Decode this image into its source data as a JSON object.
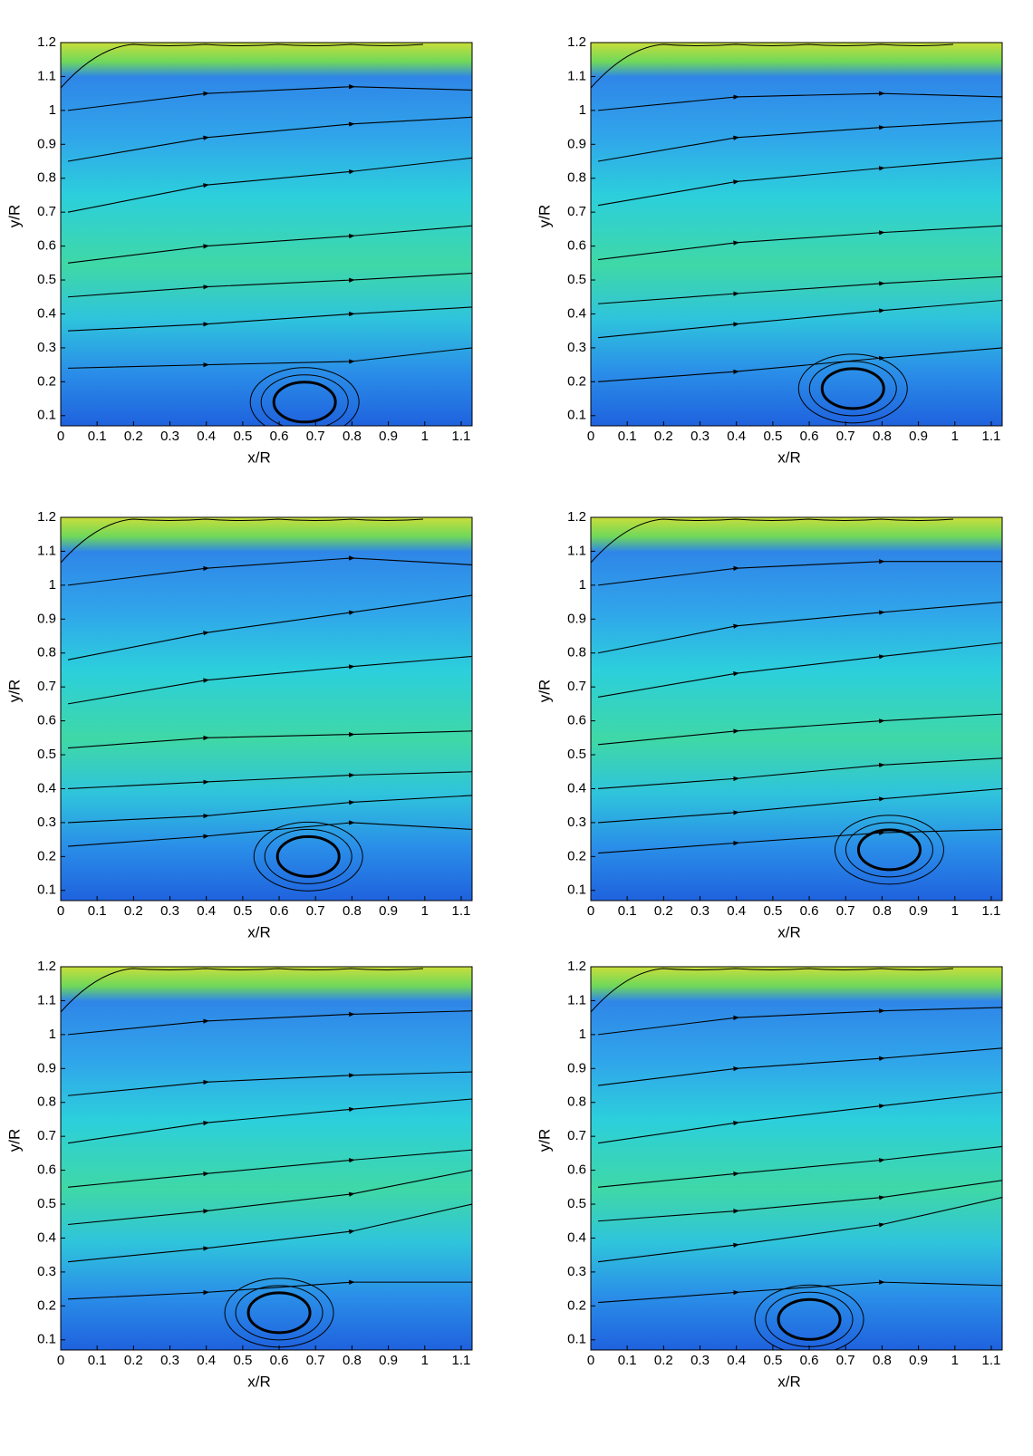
{
  "chart_data": [
    {
      "type": "contour",
      "xlabel": "x/R",
      "ylabel": "y/R",
      "xlim": [
        0,
        1.13
      ],
      "ylim": [
        0.07,
        1.2
      ],
      "xticks": [
        0,
        0.1,
        0.2,
        0.3,
        0.4,
        0.5,
        0.6,
        0.7,
        0.8,
        0.9,
        1,
        1.1
      ],
      "yticks": [
        0.1,
        0.2,
        0.3,
        0.4,
        0.5,
        0.6,
        0.7,
        0.8,
        0.9,
        1,
        1.1,
        1.2
      ],
      "streamlines": [
        {
          "x": [
            0.02,
            0.4,
            0.8,
            1.13
          ],
          "y": [
            1.0,
            1.05,
            1.07,
            1.06
          ]
        },
        {
          "x": [
            0.02,
            0.4,
            0.8,
            1.13
          ],
          "y": [
            0.85,
            0.92,
            0.96,
            0.98
          ]
        },
        {
          "x": [
            0.02,
            0.4,
            0.8,
            1.13
          ],
          "y": [
            0.7,
            0.78,
            0.82,
            0.86
          ]
        },
        {
          "x": [
            0.02,
            0.4,
            0.8,
            1.13
          ],
          "y": [
            0.55,
            0.6,
            0.63,
            0.66
          ]
        },
        {
          "x": [
            0.02,
            0.4,
            0.8,
            1.13
          ],
          "y": [
            0.45,
            0.48,
            0.5,
            0.52
          ]
        },
        {
          "x": [
            0.02,
            0.4,
            0.8,
            1.13
          ],
          "y": [
            0.35,
            0.37,
            0.4,
            0.42
          ]
        },
        {
          "x": [
            0.02,
            0.4,
            0.8,
            1.13
          ],
          "y": [
            0.24,
            0.25,
            0.26,
            0.3
          ]
        }
      ],
      "vortex": {
        "x": 0.67,
        "y": 0.14
      }
    },
    {
      "type": "contour",
      "xlabel": "x/R",
      "ylabel": "y/R",
      "xlim": [
        0,
        1.13
      ],
      "ylim": [
        0.07,
        1.2
      ],
      "xticks": [
        0,
        0.1,
        0.2,
        0.3,
        0.4,
        0.5,
        0.6,
        0.7,
        0.8,
        0.9,
        1,
        1.1
      ],
      "yticks": [
        0.1,
        0.2,
        0.3,
        0.4,
        0.5,
        0.6,
        0.7,
        0.8,
        0.9,
        1,
        1.1,
        1.2
      ],
      "streamlines": [
        {
          "x": [
            0.02,
            0.4,
            0.8,
            1.13
          ],
          "y": [
            1.0,
            1.04,
            1.05,
            1.04
          ]
        },
        {
          "x": [
            0.02,
            0.4,
            0.8,
            1.13
          ],
          "y": [
            0.85,
            0.92,
            0.95,
            0.97
          ]
        },
        {
          "x": [
            0.02,
            0.4,
            0.8,
            1.13
          ],
          "y": [
            0.72,
            0.79,
            0.83,
            0.86
          ]
        },
        {
          "x": [
            0.02,
            0.4,
            0.8,
            1.13
          ],
          "y": [
            0.56,
            0.61,
            0.64,
            0.66
          ]
        },
        {
          "x": [
            0.02,
            0.4,
            0.8,
            1.13
          ],
          "y": [
            0.43,
            0.46,
            0.49,
            0.51
          ]
        },
        {
          "x": [
            0.02,
            0.4,
            0.8,
            1.13
          ],
          "y": [
            0.33,
            0.37,
            0.41,
            0.44
          ]
        },
        {
          "x": [
            0.02,
            0.4,
            0.8,
            1.13
          ],
          "y": [
            0.2,
            0.23,
            0.27,
            0.3
          ]
        }
      ],
      "vortex": {
        "x": 0.72,
        "y": 0.18
      }
    },
    {
      "type": "contour",
      "xlabel": "x/R",
      "ylabel": "y/R",
      "xlim": [
        0,
        1.13
      ],
      "ylim": [
        0.07,
        1.2
      ],
      "xticks": [
        0,
        0.1,
        0.2,
        0.3,
        0.4,
        0.5,
        0.6,
        0.7,
        0.8,
        0.9,
        1,
        1.1
      ],
      "yticks": [
        0.1,
        0.2,
        0.3,
        0.4,
        0.5,
        0.6,
        0.7,
        0.8,
        0.9,
        1,
        1.1,
        1.2
      ],
      "streamlines": [
        {
          "x": [
            0.02,
            0.4,
            0.8,
            1.13
          ],
          "y": [
            1.0,
            1.05,
            1.08,
            1.06
          ]
        },
        {
          "x": [
            0.02,
            0.4,
            0.8,
            1.13
          ],
          "y": [
            0.78,
            0.86,
            0.92,
            0.97
          ]
        },
        {
          "x": [
            0.02,
            0.4,
            0.8,
            1.13
          ],
          "y": [
            0.65,
            0.72,
            0.76,
            0.79
          ]
        },
        {
          "x": [
            0.02,
            0.4,
            0.8,
            1.13
          ],
          "y": [
            0.52,
            0.55,
            0.56,
            0.57
          ]
        },
        {
          "x": [
            0.02,
            0.4,
            0.8,
            1.13
          ],
          "y": [
            0.4,
            0.42,
            0.44,
            0.45
          ]
        },
        {
          "x": [
            0.02,
            0.4,
            0.8,
            1.13
          ],
          "y": [
            0.3,
            0.32,
            0.36,
            0.38
          ]
        },
        {
          "x": [
            0.02,
            0.4,
            0.8,
            1.13
          ],
          "y": [
            0.23,
            0.26,
            0.3,
            0.28
          ]
        }
      ],
      "vortex": {
        "x": 0.68,
        "y": 0.2
      }
    },
    {
      "type": "contour",
      "xlabel": "x/R",
      "ylabel": "y/R",
      "xlim": [
        0,
        1.13
      ],
      "ylim": [
        0.07,
        1.2
      ],
      "xticks": [
        0,
        0.1,
        0.2,
        0.3,
        0.4,
        0.5,
        0.6,
        0.7,
        0.8,
        0.9,
        1,
        1.1
      ],
      "yticks": [
        0.1,
        0.2,
        0.3,
        0.4,
        0.5,
        0.6,
        0.7,
        0.8,
        0.9,
        1,
        1.1,
        1.2
      ],
      "streamlines": [
        {
          "x": [
            0.02,
            0.4,
            0.8,
            1.13
          ],
          "y": [
            1.0,
            1.05,
            1.07,
            1.07
          ]
        },
        {
          "x": [
            0.02,
            0.4,
            0.8,
            1.13
          ],
          "y": [
            0.8,
            0.88,
            0.92,
            0.95
          ]
        },
        {
          "x": [
            0.02,
            0.4,
            0.8,
            1.13
          ],
          "y": [
            0.67,
            0.74,
            0.79,
            0.83
          ]
        },
        {
          "x": [
            0.02,
            0.4,
            0.8,
            1.13
          ],
          "y": [
            0.53,
            0.57,
            0.6,
            0.62
          ]
        },
        {
          "x": [
            0.02,
            0.4,
            0.8,
            1.13
          ],
          "y": [
            0.4,
            0.43,
            0.47,
            0.49
          ]
        },
        {
          "x": [
            0.02,
            0.4,
            0.8,
            1.13
          ],
          "y": [
            0.3,
            0.33,
            0.37,
            0.4
          ]
        },
        {
          "x": [
            0.02,
            0.4,
            0.8,
            1.13
          ],
          "y": [
            0.21,
            0.24,
            0.27,
            0.28
          ]
        }
      ],
      "vortex": {
        "x": 0.82,
        "y": 0.22
      }
    },
    {
      "type": "contour",
      "xlabel": "x/R",
      "ylabel": "y/R",
      "xlim": [
        0,
        1.13
      ],
      "ylim": [
        0.07,
        1.2
      ],
      "xticks": [
        0,
        0.1,
        0.2,
        0.3,
        0.4,
        0.5,
        0.6,
        0.7,
        0.8,
        0.9,
        1,
        1.1
      ],
      "yticks": [
        0.1,
        0.2,
        0.3,
        0.4,
        0.5,
        0.6,
        0.7,
        0.8,
        0.9,
        1,
        1.1,
        1.2
      ],
      "streamlines": [
        {
          "x": [
            0.02,
            0.4,
            0.8,
            1.13
          ],
          "y": [
            1.0,
            1.04,
            1.06,
            1.07
          ]
        },
        {
          "x": [
            0.02,
            0.4,
            0.8,
            1.13
          ],
          "y": [
            0.82,
            0.86,
            0.88,
            0.89
          ]
        },
        {
          "x": [
            0.02,
            0.4,
            0.8,
            1.13
          ],
          "y": [
            0.68,
            0.74,
            0.78,
            0.81
          ]
        },
        {
          "x": [
            0.02,
            0.4,
            0.8,
            1.13
          ],
          "y": [
            0.55,
            0.59,
            0.63,
            0.66
          ]
        },
        {
          "x": [
            0.02,
            0.4,
            0.8,
            1.13
          ],
          "y": [
            0.44,
            0.48,
            0.53,
            0.6
          ]
        },
        {
          "x": [
            0.02,
            0.4,
            0.8,
            1.13
          ],
          "y": [
            0.33,
            0.37,
            0.42,
            0.5
          ]
        },
        {
          "x": [
            0.02,
            0.4,
            0.8,
            1.13
          ],
          "y": [
            0.22,
            0.24,
            0.27,
            0.27
          ]
        }
      ],
      "vortex": {
        "x": 0.6,
        "y": 0.18
      }
    },
    {
      "type": "contour",
      "xlabel": "x/R",
      "ylabel": "y/R",
      "xlim": [
        0,
        1.13
      ],
      "ylim": [
        0.07,
        1.2
      ],
      "xticks": [
        0,
        0.1,
        0.2,
        0.3,
        0.4,
        0.5,
        0.6,
        0.7,
        0.8,
        0.9,
        1,
        1.1
      ],
      "yticks": [
        0.1,
        0.2,
        0.3,
        0.4,
        0.5,
        0.6,
        0.7,
        0.8,
        0.9,
        1,
        1.1,
        1.2
      ],
      "streamlines": [
        {
          "x": [
            0.02,
            0.4,
            0.8,
            1.13
          ],
          "y": [
            1.0,
            1.05,
            1.07,
            1.08
          ]
        },
        {
          "x": [
            0.02,
            0.4,
            0.8,
            1.13
          ],
          "y": [
            0.85,
            0.9,
            0.93,
            0.96
          ]
        },
        {
          "x": [
            0.02,
            0.4,
            0.8,
            1.13
          ],
          "y": [
            0.68,
            0.74,
            0.79,
            0.83
          ]
        },
        {
          "x": [
            0.02,
            0.4,
            0.8,
            1.13
          ],
          "y": [
            0.55,
            0.59,
            0.63,
            0.67
          ]
        },
        {
          "x": [
            0.02,
            0.4,
            0.8,
            1.13
          ],
          "y": [
            0.45,
            0.48,
            0.52,
            0.57
          ]
        },
        {
          "x": [
            0.02,
            0.4,
            0.8,
            1.13
          ],
          "y": [
            0.33,
            0.38,
            0.44,
            0.52
          ]
        },
        {
          "x": [
            0.02,
            0.4,
            0.8,
            1.13
          ],
          "y": [
            0.21,
            0.24,
            0.27,
            0.26
          ]
        }
      ],
      "vortex": {
        "x": 0.6,
        "y": 0.16
      }
    }
  ]
}
